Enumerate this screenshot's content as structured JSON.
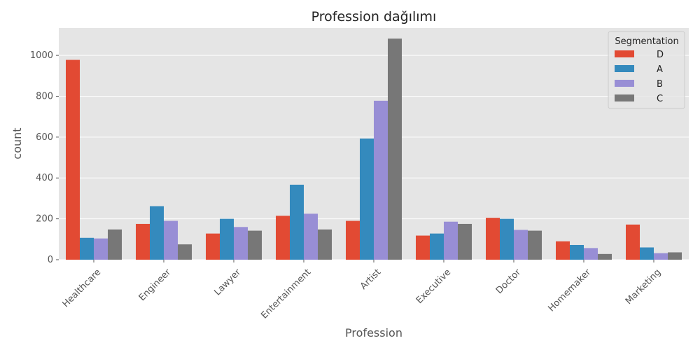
{
  "chart_data": {
    "type": "bar",
    "title": "Profession dağılımı",
    "xlabel": "Profession",
    "ylabel": "count",
    "categories": [
      "Healthcare",
      "Engineer",
      "Lawyer",
      "Entertainment",
      "Artist",
      "Executive",
      "Doctor",
      "Homemaker",
      "Marketing"
    ],
    "series": [
      {
        "name": "D",
        "color": "#E24A33",
        "values": [
          978,
          175,
          128,
          215,
          190,
          118,
          205,
          90,
          172
        ]
      },
      {
        "name": "A",
        "color": "#348ABD",
        "values": [
          107,
          262,
          200,
          367,
          593,
          128,
          200,
          72,
          60
        ]
      },
      {
        "name": "B",
        "color": "#988ED5",
        "values": [
          104,
          190,
          160,
          225,
          778,
          186,
          146,
          57,
          32
        ]
      },
      {
        "name": "C",
        "color": "#777777",
        "values": [
          148,
          75,
          142,
          148,
          1082,
          175,
          142,
          28,
          36
        ]
      }
    ],
    "yticks": [
      0,
      200,
      400,
      600,
      800,
      1000
    ],
    "ylim": [
      0,
      1134
    ],
    "grid": true,
    "legend": {
      "title": "Segmentation",
      "placement": "top-right"
    },
    "background": "#E5E5E5"
  }
}
